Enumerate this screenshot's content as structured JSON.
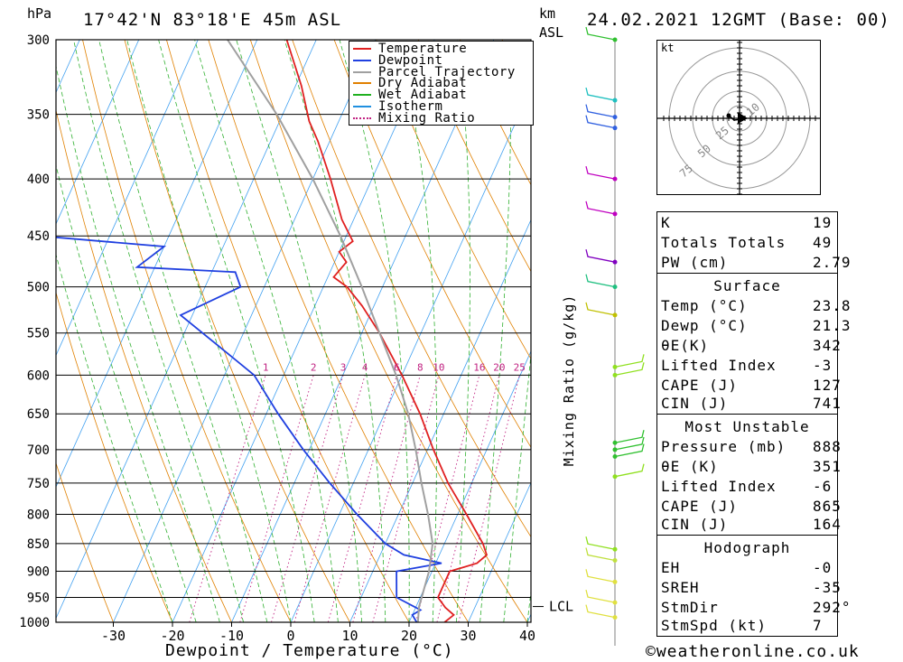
{
  "header": {
    "hpa_label": "hPa",
    "location": "17°42'N  83°18'E  45m  ASL",
    "km_label": "km",
    "asl_label": "ASL",
    "datetime": "24.02.2021  12GMT  (Base: 00)"
  },
  "chart_data": {
    "type": "line",
    "title": "Skew-T log-P diagram 17°42'N 83°18'E 45m ASL",
    "xlabel": "Dewpoint / Temperature (°C)",
    "ylabel": "hPa",
    "xlim": [
      -40,
      40
    ],
    "ylim": [
      1000,
      300
    ],
    "pressure_levels": [
      300,
      350,
      400,
      450,
      500,
      550,
      600,
      650,
      700,
      750,
      800,
      850,
      900,
      950,
      1000
    ],
    "x_ticks": [
      -30,
      -20,
      -10,
      0,
      10,
      20,
      30,
      40
    ],
    "mixing_ratio_labels": [
      "1",
      "2",
      "3",
      "4",
      "6",
      "8",
      "10",
      "16",
      "20",
      "25"
    ],
    "mixing_ratio_axis_label": "Mixing Ratio (g/kg)",
    "lcl_label": "LCL",
    "lcl_pressure": 968,
    "legend": [
      {
        "name": "Temperature",
        "color": "#e02020",
        "style": "solid"
      },
      {
        "name": "Dewpoint",
        "color": "#2040e0",
        "style": "solid"
      },
      {
        "name": "Parcel Trajectory",
        "color": "#a0a0a0",
        "style": "solid"
      },
      {
        "name": "Dry Adiabat",
        "color": "#e08000",
        "style": "solid"
      },
      {
        "name": "Wet Adiabat",
        "color": "#20b020",
        "style": "solid"
      },
      {
        "name": "Isotherm",
        "color": "#2090e0",
        "style": "solid"
      },
      {
        "name": "Mixing Ratio",
        "color": "#c02080",
        "style": "dotted"
      }
    ],
    "series": [
      {
        "name": "Temperature",
        "points": [
          [
            1000,
            26
          ],
          [
            985,
            27
          ],
          [
            970,
            25
          ],
          [
            950,
            23
          ],
          [
            925,
            23
          ],
          [
            900,
            23
          ],
          [
            885,
            27
          ],
          [
            870,
            28
          ],
          [
            850,
            26.5
          ],
          [
            800,
            21.5
          ],
          [
            750,
            16
          ],
          [
            700,
            11
          ],
          [
            650,
            6
          ],
          [
            600,
            0
          ],
          [
            550,
            -7
          ],
          [
            520,
            -12
          ],
          [
            500,
            -16
          ],
          [
            490,
            -19
          ],
          [
            475,
            -18
          ],
          [
            465,
            -20
          ],
          [
            455,
            -18.5
          ],
          [
            435,
            -22
          ],
          [
            400,
            -27
          ],
          [
            370,
            -32
          ],
          [
            355,
            -35
          ],
          [
            330,
            -39
          ],
          [
            300,
            -45
          ]
        ]
      },
      {
        "name": "Dewpoint",
        "points": [
          [
            1000,
            21.3
          ],
          [
            985,
            20
          ],
          [
            975,
            21
          ],
          [
            950,
            16
          ],
          [
            900,
            14
          ],
          [
            885,
            21
          ],
          [
            870,
            14
          ],
          [
            850,
            10
          ],
          [
            800,
            3
          ],
          [
            750,
            -4
          ],
          [
            700,
            -11
          ],
          [
            650,
            -18
          ],
          [
            600,
            -25
          ],
          [
            570,
            -32
          ],
          [
            530,
            -42
          ],
          [
            500,
            -34
          ],
          [
            485,
            -36
          ],
          [
            480,
            -53
          ],
          [
            460,
            -50
          ],
          [
            450,
            -72
          ],
          [
            430,
            -77
          ],
          [
            400,
            -80
          ],
          [
            350,
            -85
          ],
          [
            300,
            -90
          ]
        ]
      },
      {
        "name": "Parcel Trajectory",
        "points": [
          [
            1000,
            21.5
          ],
          [
            968,
            20.5
          ],
          [
            900,
            19.5
          ],
          [
            850,
            18
          ],
          [
            800,
            15
          ],
          [
            750,
            11.5
          ],
          [
            700,
            8
          ],
          [
            650,
            4
          ],
          [
            600,
            -1
          ],
          [
            550,
            -7
          ],
          [
            500,
            -13.5
          ],
          [
            450,
            -21
          ],
          [
            400,
            -30
          ],
          [
            350,
            -41
          ],
          [
            300,
            -55
          ]
        ]
      }
    ]
  },
  "hodograph": {
    "unit_label": "kt",
    "ring_labels": [
      "10",
      "25",
      "50",
      "75"
    ]
  },
  "indices": {
    "k_label": "K",
    "k_value": "19",
    "tt_label": "Totals Totals",
    "tt_value": "49",
    "pw_label": "PW (cm)",
    "pw_value": "2.79"
  },
  "surface": {
    "title": "Surface",
    "temp_label": "Temp (°C)",
    "temp_value": "23.8",
    "dewp_label": "Dewp (°C)",
    "dewp_value": "21.3",
    "theta_label": "θE(K)",
    "theta_value": "342",
    "li_label": "Lifted Index",
    "li_value": "-3",
    "cape_label": "CAPE (J)",
    "cape_value": "127",
    "cin_label": "CIN (J)",
    "cin_value": "741"
  },
  "most_unstable": {
    "title": "Most Unstable",
    "pressure_label": "Pressure (mb)",
    "pressure_value": "888",
    "theta_label": "θE (K)",
    "theta_value": "351",
    "li_label": "Lifted Index",
    "li_value": "-6",
    "cape_label": "CAPE (J)",
    "cape_value": "865",
    "cin_label": "CIN (J)",
    "cin_value": "164"
  },
  "hodograph_params": {
    "title": "Hodograph",
    "eh_label": "EH",
    "eh_value": "-0",
    "sreh_label": "SREH",
    "sreh_value": "-35",
    "stmdir_label": "StmDir",
    "stmdir_value": "292°",
    "stmspd_label": "StmSpd (kt)",
    "stmspd_value": "7"
  },
  "footer": {
    "copyright": "©weatheronline.co.uk"
  }
}
